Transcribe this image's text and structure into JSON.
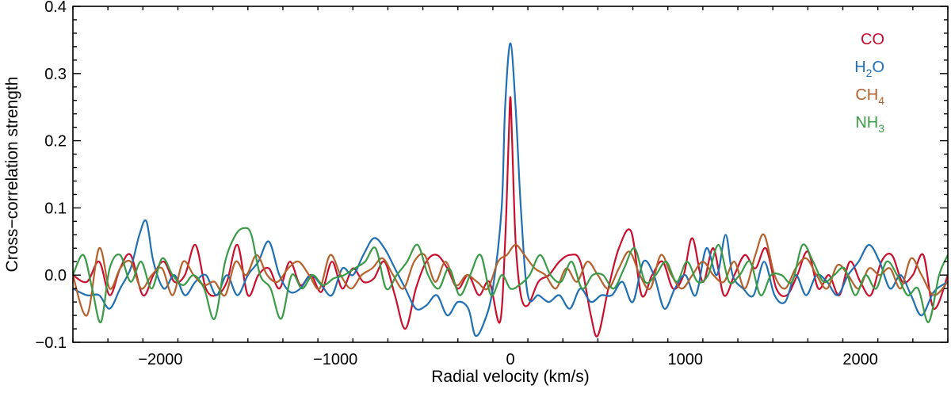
{
  "chart_data": {
    "type": "line",
    "title": "",
    "xlabel": "Radial velocity (km/s)",
    "ylabel": "Cross−correlation strength",
    "xlim": [
      -2500,
      2500
    ],
    "ylim": [
      -0.1,
      0.4
    ],
    "xticks": [
      -2000,
      -1000,
      0,
      1000,
      2000
    ],
    "xtick_labels": [
      "−2000",
      "−1000",
      "0",
      "1000",
      "2000"
    ],
    "yticks": [
      -0.1,
      0.0,
      0.1,
      0.2,
      0.3,
      0.4
    ],
    "ytick_labels": [
      "−0.1",
      "0.0",
      "0.1",
      "0.2",
      "0.3",
      "0.4"
    ],
    "legend_position": "top-right",
    "series": [
      {
        "name": "CO",
        "label_main": "CO",
        "label_sub": "",
        "color": "#c8102e",
        "x": [
          -2500,
          -2420,
          -2350,
          -2290,
          -2230,
          -2170,
          -2100,
          -2040,
          -1980,
          -1920,
          -1860,
          -1800,
          -1740,
          -1680,
          -1620,
          -1560,
          -1500,
          -1440,
          -1380,
          -1320,
          -1260,
          -1200,
          -1140,
          -1080,
          -1020,
          -960,
          -900,
          -840,
          -780,
          -720,
          -660,
          -600,
          -540,
          -480,
          -420,
          -360,
          -300,
          -240,
          -180,
          -120,
          -60,
          -30,
          -10,
          0,
          10,
          30,
          60,
          100,
          160,
          220,
          280,
          340,
          400,
          460,
          500,
          560,
          620,
          690,
          750,
          810,
          870,
          930,
          990,
          1040,
          1100,
          1160,
          1220,
          1280,
          1340,
          1400,
          1460,
          1520,
          1580,
          1640,
          1700,
          1760,
          1820,
          1880,
          1940,
          2000,
          2060,
          2120,
          2180,
          2240,
          2300,
          2360,
          2420,
          2500
        ],
        "y": [
          0.0,
          -0.01,
          0.02,
          -0.03,
          0.01,
          0.03,
          -0.03,
          0.0,
          0.02,
          -0.01,
          0.0,
          0.045,
          -0.02,
          -0.03,
          -0.01,
          0.045,
          -0.03,
          0.0,
          0.01,
          -0.02,
          0.02,
          -0.015,
          0.0,
          -0.025,
          0.02,
          -0.02,
          0.01,
          -0.01,
          -0.005,
          0.02,
          -0.03,
          -0.08,
          -0.02,
          0.02,
          0.03,
          0.01,
          -0.02,
          0.0,
          -0.03,
          -0.01,
          -0.07,
          0.05,
          0.2,
          0.265,
          0.2,
          0.05,
          -0.03,
          -0.045,
          -0.01,
          0.0,
          0.02,
          0.03,
          0.02,
          -0.06,
          -0.09,
          -0.02,
          0.04,
          0.065,
          -0.03,
          0.0,
          0.02,
          -0.02,
          0.0,
          0.055,
          -0.01,
          0.04,
          -0.03,
          0.0,
          0.03,
          0.01,
          0.04,
          -0.02,
          -0.03,
          0.0,
          0.035,
          -0.02,
          0.0,
          -0.03,
          0.02,
          -0.01,
          -0.03,
          0.02,
          0.03,
          -0.01,
          0.0,
          0.03,
          -0.05,
          0.0
        ]
      },
      {
        "name": "H2O",
        "label_main": "H",
        "label_sub": "2",
        "label_tail": "O",
        "color": "#1f6fb2",
        "x": [
          -2500,
          -2420,
          -2350,
          -2290,
          -2230,
          -2170,
          -2120,
          -2080,
          -2040,
          -1980,
          -1920,
          -1860,
          -1800,
          -1740,
          -1680,
          -1620,
          -1560,
          -1500,
          -1440,
          -1380,
          -1320,
          -1260,
          -1200,
          -1140,
          -1080,
          -1020,
          -960,
          -900,
          -840,
          -780,
          -720,
          -660,
          -600,
          -540,
          -480,
          -420,
          -360,
          -300,
          -240,
          -200,
          -150,
          -100,
          -50,
          -30,
          0,
          30,
          60,
          100,
          160,
          220,
          280,
          340,
          400,
          460,
          520,
          580,
          640,
          700,
          760,
          820,
          880,
          940,
          1000,
          1060,
          1120,
          1180,
          1230,
          1270,
          1330,
          1390,
          1450,
          1510,
          1570,
          1630,
          1690,
          1750,
          1810,
          1870,
          1930,
          1990,
          2050,
          2110,
          2170,
          2230,
          2290,
          2350,
          2420,
          2500
        ],
        "y": [
          -0.02,
          -0.03,
          -0.03,
          -0.05,
          -0.02,
          0.01,
          0.06,
          0.08,
          0.02,
          -0.02,
          0.0,
          -0.03,
          -0.01,
          0.0,
          -0.03,
          0.0,
          -0.03,
          0.0,
          0.02,
          0.05,
          0.0,
          -0.025,
          -0.02,
          0.0,
          -0.015,
          -0.03,
          0.01,
          0.0,
          0.03,
          0.055,
          0.04,
          0.01,
          -0.02,
          -0.05,
          -0.045,
          -0.03,
          -0.06,
          -0.04,
          -0.05,
          -0.09,
          -0.07,
          -0.02,
          0.1,
          0.25,
          0.345,
          0.25,
          0.1,
          -0.03,
          -0.03,
          -0.04,
          -0.03,
          -0.05,
          -0.02,
          -0.04,
          -0.03,
          -0.03,
          -0.01,
          -0.04,
          0.02,
          0.0,
          -0.05,
          -0.02,
          0.0,
          -0.03,
          0.04,
          0.0,
          0.06,
          0.0,
          -0.02,
          -0.03,
          0.02,
          -0.03,
          -0.04,
          0.0,
          -0.03,
          0.0,
          -0.01,
          -0.03,
          0.0,
          0.02,
          0.045,
          0.02,
          -0.02,
          0.0,
          -0.03,
          -0.06,
          -0.025,
          -0.01
        ]
      },
      {
        "name": "CH4",
        "label_main": "CH",
        "label_sub": "4",
        "color": "#b4622d",
        "x": [
          -2500,
          -2420,
          -2350,
          -2290,
          -2230,
          -2170,
          -2110,
          -2050,
          -1990,
          -1930,
          -1870,
          -1810,
          -1750,
          -1690,
          -1630,
          -1570,
          -1510,
          -1450,
          -1390,
          -1330,
          -1270,
          -1210,
          -1150,
          -1090,
          -1030,
          -970,
          -910,
          -850,
          -790,
          -730,
          -670,
          -610,
          -550,
          -490,
          -430,
          -370,
          -310,
          -250,
          -190,
          -130,
          -70,
          -20,
          30,
          80,
          140,
          200,
          260,
          320,
          380,
          440,
          500,
          560,
          620,
          680,
          740,
          800,
          860,
          920,
          980,
          1040,
          1100,
          1160,
          1220,
          1280,
          1340,
          1400,
          1450,
          1510,
          1570,
          1630,
          1690,
          1750,
          1810,
          1870,
          1930,
          1990,
          2050,
          2110,
          2170,
          2230,
          2290,
          2350,
          2420,
          2500
        ],
        "y": [
          0.0,
          -0.06,
          0.04,
          -0.02,
          0.01,
          0.02,
          -0.02,
          0.0,
          0.01,
          -0.03,
          0.02,
          0.0,
          -0.015,
          -0.01,
          -0.03,
          0.02,
          0.0,
          0.03,
          0.0,
          -0.01,
          0.01,
          0.02,
          0.0,
          -0.02,
          0.03,
          0.0,
          -0.02,
          0.0,
          0.01,
          0.025,
          0.0,
          -0.02,
          0.02,
          0.03,
          -0.01,
          0.02,
          -0.015,
          0.0,
          -0.01,
          -0.02,
          0.02,
          0.03,
          0.045,
          0.03,
          0.01,
          0.0,
          -0.02,
          0.01,
          -0.01,
          0.02,
          0.0,
          -0.02,
          0.01,
          0.035,
          0.0,
          -0.02,
          0.03,
          0.0,
          -0.02,
          0.0,
          0.02,
          0.0,
          -0.01,
          0.02,
          -0.02,
          0.03,
          0.06,
          0.0,
          -0.02,
          0.01,
          0.025,
          0.0,
          -0.02,
          0.015,
          0.0,
          -0.02,
          0.01,
          0.0,
          0.01,
          -0.02,
          0.025,
          0.0,
          -0.03,
          -0.01
        ]
      },
      {
        "name": "NH3",
        "label_main": "NH",
        "label_sub": "3",
        "color": "#3a9a46",
        "x": [
          -2500,
          -2440,
          -2390,
          -2340,
          -2290,
          -2230,
          -2170,
          -2110,
          -2050,
          -1990,
          -1930,
          -1870,
          -1810,
          -1750,
          -1690,
          -1630,
          -1570,
          -1520,
          -1480,
          -1430,
          -1370,
          -1310,
          -1250,
          -1190,
          -1130,
          -1070,
          -1010,
          -950,
          -890,
          -830,
          -770,
          -710,
          -650,
          -590,
          -530,
          -470,
          -410,
          -350,
          -290,
          -230,
          -170,
          -110,
          -50,
          0,
          50,
          110,
          170,
          230,
          290,
          350,
          410,
          470,
          530,
          590,
          650,
          710,
          770,
          830,
          890,
          950,
          1010,
          1070,
          1130,
          1190,
          1250,
          1310,
          1370,
          1430,
          1490,
          1550,
          1610,
          1670,
          1730,
          1790,
          1850,
          1910,
          1970,
          2030,
          2090,
          2150,
          2210,
          2270,
          2330,
          2390,
          2450,
          2500
        ],
        "y": [
          0.0,
          0.03,
          -0.02,
          -0.07,
          0.01,
          0.03,
          -0.01,
          0.02,
          -0.02,
          0.025,
          0.0,
          -0.015,
          0.0,
          -0.02,
          -0.065,
          0.02,
          0.06,
          0.07,
          0.06,
          0.0,
          -0.02,
          -0.065,
          0.0,
          -0.02,
          0.0,
          -0.015,
          -0.005,
          0.0,
          0.01,
          0.02,
          0.04,
          -0.02,
          0.0,
          0.02,
          0.045,
          0.0,
          -0.02,
          0.01,
          -0.03,
          0.0,
          0.03,
          -0.03,
          0.0,
          -0.02,
          -0.015,
          0.0,
          0.03,
          0.0,
          -0.01,
          0.02,
          -0.02,
          0.0,
          0.0,
          -0.02,
          0.01,
          0.04,
          -0.01,
          0.0,
          0.02,
          -0.01,
          0.02,
          -0.01,
          0.0,
          0.045,
          -0.01,
          0.0,
          0.02,
          -0.03,
          0.0,
          0.0,
          -0.01,
          0.045,
          0.02,
          -0.01,
          0.0,
          0.01,
          -0.03,
          0.0,
          -0.02,
          0.02,
          0.0,
          -0.03,
          -0.02,
          -0.07,
          0.0,
          0.03
        ]
      }
    ]
  }
}
